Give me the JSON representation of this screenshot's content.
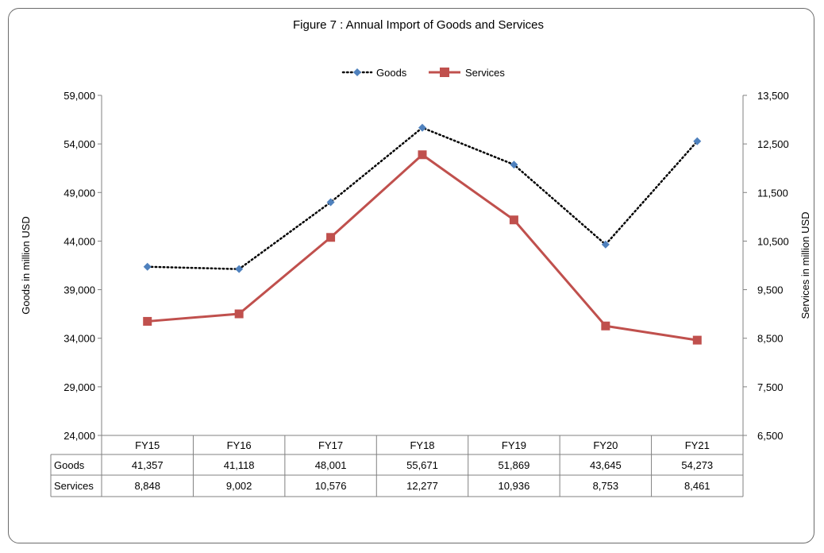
{
  "chart_data": {
    "type": "line",
    "title": "Figure  7 : Annual Import of Goods and Services",
    "categories": [
      "FY15",
      "FY16",
      "FY17",
      "FY18",
      "FY19",
      "FY20",
      "FY21"
    ],
    "series": [
      {
        "name": "Goods",
        "axis": "left",
        "values": [
          41357,
          41118,
          48001,
          55671,
          51869,
          43645,
          54273
        ],
        "display": [
          "41,357",
          "41,118",
          "48,001",
          "55,671",
          "51,869",
          "43,645",
          "54,273"
        ],
        "color": "#4f81bd",
        "line_color": "#000000",
        "line_style": "dotted",
        "marker": "diamond"
      },
      {
        "name": "Services",
        "axis": "right",
        "values": [
          8848,
          9002,
          10576,
          12277,
          10936,
          8753,
          8461
        ],
        "display": [
          "8,848",
          "9,002",
          "10,576",
          "12,277",
          "10,936",
          "8,753",
          "8,461"
        ],
        "color": "#c0504d",
        "line_color": "#c0504d",
        "line_style": "solid",
        "marker": "square"
      }
    ],
    "ylabel_left": "Goods in million USD",
    "ylabel_right": "Services in million  USD",
    "ylim_left": [
      24000,
      59000
    ],
    "ylim_right": [
      6500,
      13500
    ],
    "yticks_left": [
      "24,000",
      "29,000",
      "34,000",
      "39,000",
      "44,000",
      "49,000",
      "54,000",
      "59,000"
    ],
    "yticks_right": [
      "6,500",
      "7,500",
      "8,500",
      "9,500",
      "10,500",
      "11,500",
      "12,500",
      "13,500"
    ],
    "grid": false,
    "legend_position": "top",
    "data_table": true
  }
}
